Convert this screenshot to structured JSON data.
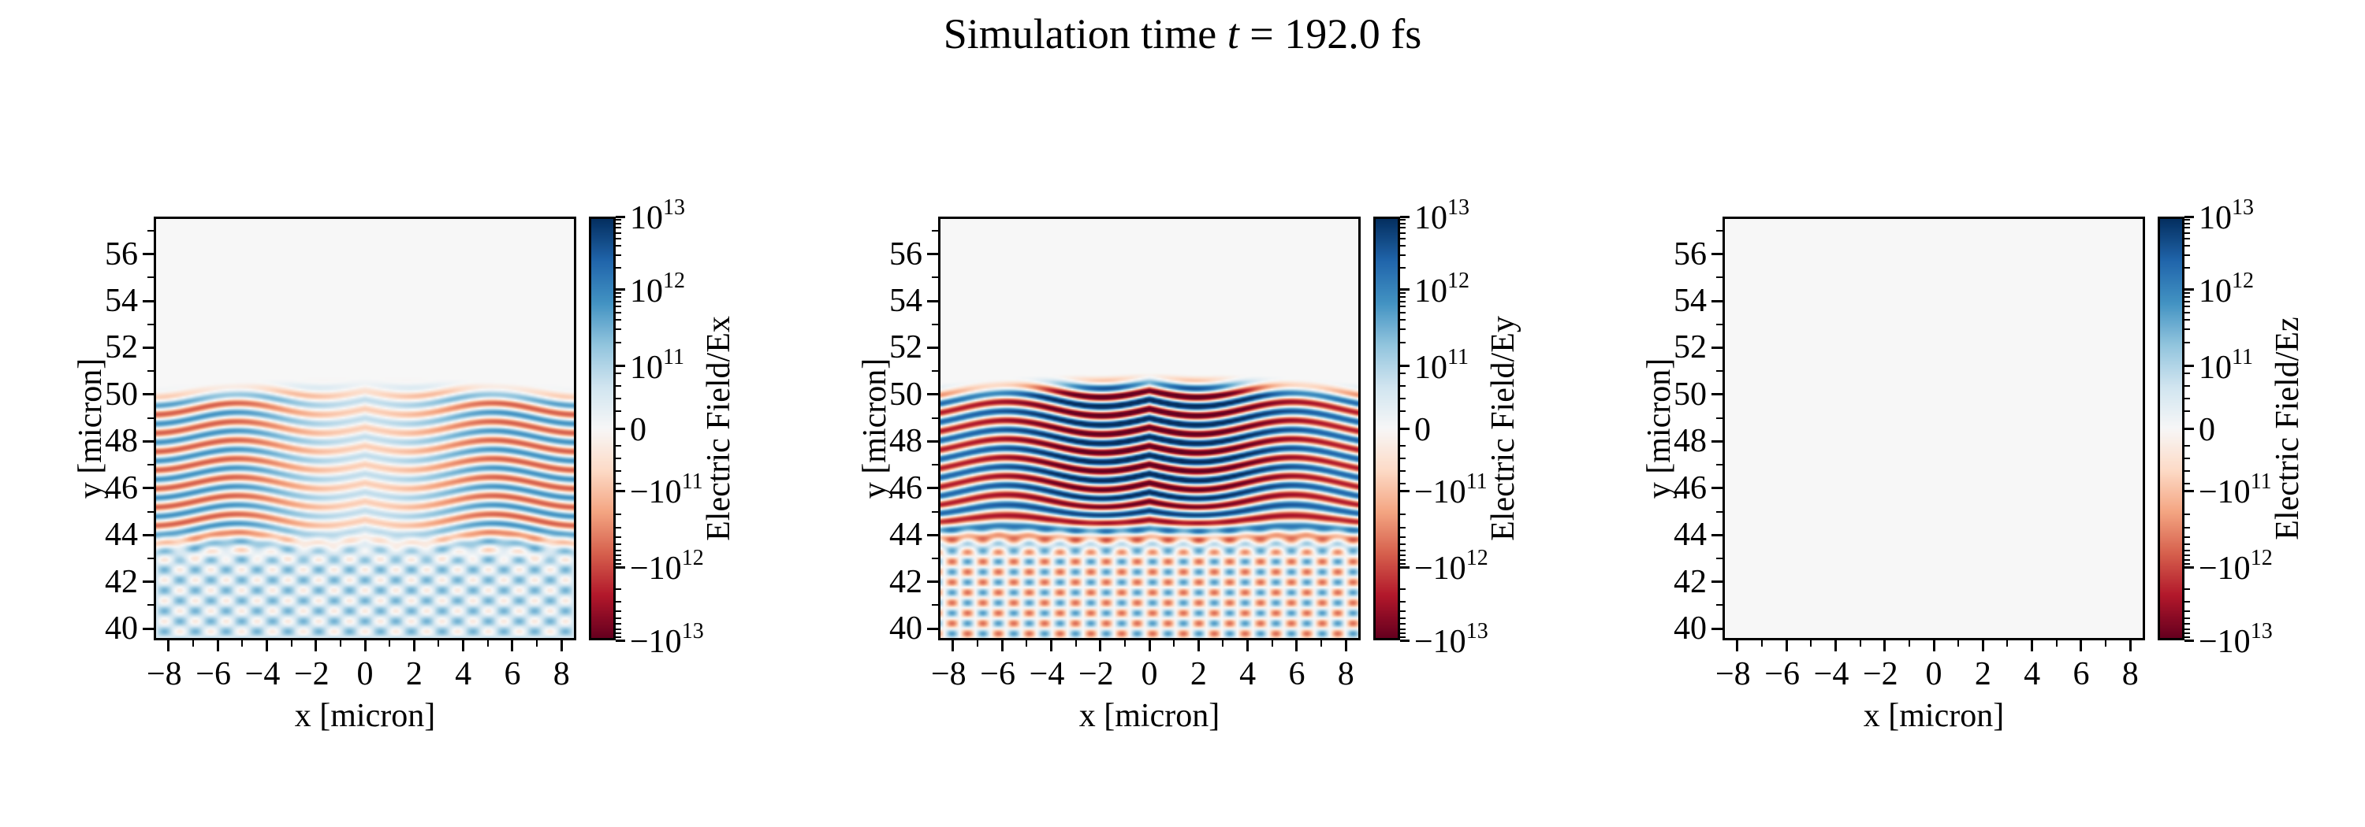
{
  "figure": {
    "title_prefix": "Simulation time",
    "title_var": "t",
    "title_suffix": "= 192.0 fs"
  },
  "colormap": [
    "#67001f",
    "#b2182b",
    "#d6604d",
    "#f4a582",
    "#fddbc7",
    "#f7f7f7",
    "#d1e5f0",
    "#92c5de",
    "#4393c3",
    "#2166ac",
    "#053061"
  ],
  "chart_data": [
    {
      "type": "heatmap",
      "field": "Ex",
      "xlabel": "x [micron]",
      "ylabel": "y [micron]",
      "colorbar_label": "Electric Field/Ex",
      "xlim": [
        -8.6,
        8.6
      ],
      "ylim": [
        39.5,
        57.6
      ],
      "xticks": [
        "−8",
        "−6",
        "−4",
        "−2",
        "0",
        "2",
        "4",
        "6",
        "8"
      ],
      "xtick_values": [
        -8,
        -6,
        -4,
        -2,
        0,
        2,
        4,
        6,
        8
      ],
      "yticks": [
        "40",
        "42",
        "44",
        "46",
        "48",
        "50",
        "52",
        "54",
        "56"
      ],
      "ytick_values": [
        40,
        42,
        44,
        46,
        48,
        50,
        52,
        54,
        56
      ],
      "colorbar_scale": "symlog",
      "colorbar_range": [
        -10000000000000.0,
        10000000000000.0
      ],
      "colorbar_ticks": [
        "−10|13",
        "−10|12",
        "−10|11",
        "0",
        "10|11",
        "10|12",
        "10|13"
      ],
      "colorbar_tick_values": [
        -10000000000000.0,
        -1000000000000.0,
        -100000000000.0,
        0,
        100000000000.0,
        1000000000000.0,
        10000000000000.0
      ],
      "wave_front_y": 50.8,
      "description_of_content": ""
    },
    {
      "type": "heatmap",
      "field": "Ey",
      "xlabel": "x [micron]",
      "ylabel": "y [micron]",
      "colorbar_label": "Electric Field/Ey",
      "xlim": [
        -8.6,
        8.6
      ],
      "ylim": [
        39.5,
        57.6
      ],
      "xticks": [
        "−8",
        "−6",
        "−4",
        "−2",
        "0",
        "2",
        "4",
        "6",
        "8"
      ],
      "xtick_values": [
        -8,
        -6,
        -4,
        -2,
        0,
        2,
        4,
        6,
        8
      ],
      "yticks": [
        "40",
        "42",
        "44",
        "46",
        "48",
        "50",
        "52",
        "54",
        "56"
      ],
      "ytick_values": [
        40,
        42,
        44,
        46,
        48,
        50,
        52,
        54,
        56
      ],
      "colorbar_scale": "symlog",
      "colorbar_range": [
        -10000000000000.0,
        10000000000000.0
      ],
      "colorbar_ticks": [
        "−10|13",
        "−10|12",
        "−10|11",
        "0",
        "10|11",
        "10|12",
        "10|13"
      ],
      "colorbar_tick_values": [
        -10000000000000.0,
        -1000000000000.0,
        -100000000000.0,
        0,
        100000000000.0,
        1000000000000.0,
        10000000000000.0
      ],
      "wave_front_y": 51.0
    },
    {
      "type": "heatmap",
      "field": "Ez",
      "xlabel": "x [micron]",
      "ylabel": "y [micron]",
      "colorbar_label": "Electric Field/Ez",
      "xlim": [
        -8.6,
        8.6
      ],
      "ylim": [
        39.5,
        57.6
      ],
      "xticks": [
        "−8",
        "−6",
        "−4",
        "−2",
        "0",
        "2",
        "4",
        "6",
        "8"
      ],
      "xtick_values": [
        -8,
        -6,
        -4,
        -2,
        0,
        2,
        4,
        6,
        8
      ],
      "yticks": [
        "40",
        "42",
        "44",
        "46",
        "48",
        "50",
        "52",
        "54",
        "56"
      ],
      "ytick_values": [
        40,
        42,
        44,
        46,
        48,
        50,
        52,
        54,
        56
      ],
      "colorbar_scale": "symlog",
      "colorbar_range": [
        -10000000000000.0,
        10000000000000.0
      ],
      "colorbar_ticks": [
        "−10|13",
        "−10|12",
        "−10|11",
        "0",
        "10|11",
        "10|12",
        "10|13"
      ],
      "colorbar_tick_values": [
        -10000000000000.0,
        -1000000000000.0,
        -100000000000.0,
        0,
        100000000000.0,
        1000000000000.0,
        10000000000000.0
      ],
      "uniform_value": 0
    }
  ]
}
